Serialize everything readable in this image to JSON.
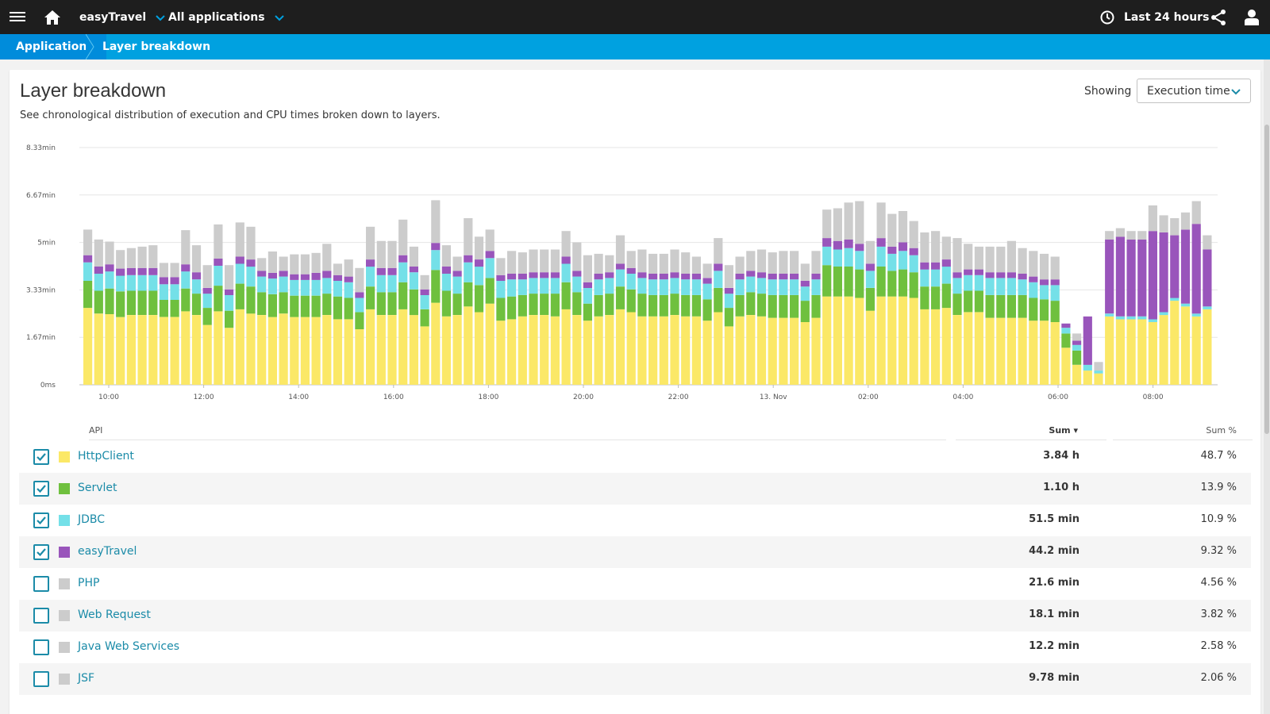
{
  "topbar": {
    "app_name": "easyTravel",
    "all_apps": "All applications",
    "timeframe": "Last 24 hours"
  },
  "breadcrumb": {
    "items": [
      "Applications",
      "Layer breakdown"
    ]
  },
  "page": {
    "title": "Layer breakdown",
    "description": "See chronological distribution of execution and CPU times broken down to layers.",
    "showing_label": "Showing",
    "showing_value": "Execution time"
  },
  "colors": {
    "HttpClient": "#fbe867",
    "Servlet": "#6fc03e",
    "JDBC": "#74e0e8",
    "easyTravel": "#9955bb",
    "Other": "#cccccc",
    "topbar": "#1e1e1e",
    "breadcrumb": "#00a1e0",
    "link": "#1b8ba8"
  },
  "chart_data": {
    "type": "bar",
    "stacked": true,
    "y_tick_labels": [
      "0ms",
      "1.67min",
      "3.33min",
      "5min",
      "6.67min",
      "8.33min"
    ],
    "ylim": [
      0,
      8.33
    ],
    "x_tick_labels": [
      "10:00",
      "12:00",
      "14:00",
      "16:00",
      "18:00",
      "20:00",
      "22:00",
      "13. Nov",
      "02:00",
      "04:00",
      "06:00",
      "08:00"
    ],
    "grid": true,
    "legend": "none",
    "series": [
      {
        "name": "HttpClient",
        "color": "#fbe867",
        "values": [
          2.7,
          2.5,
          2.48,
          2.38,
          2.45,
          2.45,
          2.45,
          2.38,
          2.38,
          2.58,
          2.45,
          2.1,
          2.58,
          2.0,
          2.65,
          2.5,
          2.45,
          2.38,
          2.5,
          2.38,
          2.38,
          2.38,
          2.45,
          2.3,
          2.3,
          1.95,
          2.65,
          2.45,
          2.45,
          2.65,
          2.45,
          2.05,
          2.88,
          2.4,
          2.45,
          2.75,
          2.55,
          2.85,
          2.25,
          2.3,
          2.4,
          2.45,
          2.45,
          2.4,
          2.65,
          2.45,
          2.25,
          2.4,
          2.45,
          2.65,
          2.55,
          2.4,
          2.4,
          2.4,
          2.45,
          2.4,
          2.4,
          2.25,
          2.55,
          2.05,
          2.4,
          2.45,
          2.4,
          2.35,
          2.35,
          2.35,
          2.2,
          2.35,
          3.1,
          3.1,
          3.1,
          3.05,
          2.6,
          3.1,
          3.1,
          3.1,
          3.05,
          2.65,
          2.65,
          2.7,
          2.45,
          2.55,
          2.55,
          2.35,
          2.35,
          2.35,
          2.35,
          2.25,
          2.25,
          2.2,
          1.3,
          0.7,
          0.5,
          0.4,
          2.4,
          2.3,
          2.3,
          2.3,
          2.2,
          2.45,
          2.95,
          2.75,
          2.4,
          2.65
        ]
      },
      {
        "name": "Servlet",
        "color": "#6fc03e",
        "values": [
          0.95,
          0.8,
          0.9,
          0.9,
          0.85,
          0.85,
          0.85,
          0.6,
          0.6,
          0.8,
          0.75,
          0.6,
          0.9,
          0.6,
          0.9,
          0.95,
          0.8,
          0.8,
          0.75,
          0.75,
          0.75,
          0.75,
          0.75,
          0.8,
          0.75,
          0.6,
          0.8,
          0.8,
          0.8,
          0.95,
          0.9,
          0.6,
          1.15,
          0.9,
          0.75,
          0.85,
          0.95,
          0.9,
          0.8,
          0.8,
          0.75,
          0.75,
          0.75,
          0.8,
          0.95,
          0.8,
          0.6,
          0.75,
          0.75,
          0.8,
          0.8,
          0.8,
          0.75,
          0.75,
          0.75,
          0.75,
          0.75,
          0.75,
          0.85,
          0.65,
          0.75,
          0.8,
          0.8,
          0.8,
          0.8,
          0.8,
          0.75,
          0.8,
          1.1,
          1.05,
          1.05,
          1.0,
          0.8,
          1.05,
          0.9,
          0.95,
          0.9,
          0.8,
          0.8,
          0.85,
          0.75,
          0.75,
          0.75,
          0.8,
          0.8,
          0.8,
          0.8,
          0.8,
          0.75,
          0.75,
          0.5,
          0.5,
          0.0,
          0.0,
          0.0,
          0.0,
          0.0,
          0.0,
          0.0,
          0.0,
          0.0,
          0.0,
          0.0,
          0.0
        ]
      },
      {
        "name": "JDBC",
        "color": "#74e0e8",
        "values": [
          0.65,
          0.6,
          0.6,
          0.55,
          0.55,
          0.55,
          0.55,
          0.55,
          0.55,
          0.6,
          0.5,
          0.5,
          0.7,
          0.55,
          0.7,
          0.7,
          0.55,
          0.55,
          0.55,
          0.55,
          0.55,
          0.55,
          0.55,
          0.55,
          0.55,
          0.5,
          0.7,
          0.6,
          0.6,
          0.7,
          0.6,
          0.5,
          0.7,
          0.6,
          0.6,
          0.7,
          0.65,
          0.7,
          0.6,
          0.6,
          0.55,
          0.55,
          0.55,
          0.55,
          0.65,
          0.55,
          0.55,
          0.55,
          0.55,
          0.6,
          0.55,
          0.55,
          0.55,
          0.55,
          0.55,
          0.55,
          0.55,
          0.55,
          0.6,
          0.5,
          0.55,
          0.55,
          0.55,
          0.55,
          0.55,
          0.55,
          0.5,
          0.55,
          0.65,
          0.6,
          0.65,
          0.65,
          0.6,
          0.7,
          0.6,
          0.65,
          0.6,
          0.6,
          0.6,
          0.6,
          0.55,
          0.55,
          0.55,
          0.6,
          0.6,
          0.6,
          0.55,
          0.55,
          0.5,
          0.55,
          0.2,
          0.2,
          0.2,
          0.1,
          0.1,
          0.1,
          0.1,
          0.1,
          0.1,
          0.1,
          0.1,
          0.1,
          0.1,
          0.1
        ]
      },
      {
        "name": "easyTravel",
        "color": "#9955bb",
        "values": [
          0.25,
          0.25,
          0.25,
          0.25,
          0.25,
          0.25,
          0.25,
          0.25,
          0.25,
          0.25,
          0.25,
          0.2,
          0.25,
          0.2,
          0.25,
          0.25,
          0.2,
          0.2,
          0.2,
          0.2,
          0.2,
          0.25,
          0.25,
          0.2,
          0.2,
          0.2,
          0.25,
          0.25,
          0.25,
          0.25,
          0.2,
          0.2,
          0.25,
          0.25,
          0.2,
          0.25,
          0.25,
          0.25,
          0.2,
          0.2,
          0.2,
          0.2,
          0.2,
          0.2,
          0.25,
          0.2,
          0.2,
          0.2,
          0.2,
          0.2,
          0.2,
          0.2,
          0.2,
          0.2,
          0.2,
          0.2,
          0.2,
          0.2,
          0.25,
          0.2,
          0.2,
          0.2,
          0.2,
          0.2,
          0.2,
          0.2,
          0.2,
          0.2,
          0.3,
          0.3,
          0.3,
          0.25,
          0.25,
          0.3,
          0.25,
          0.3,
          0.25,
          0.25,
          0.25,
          0.25,
          0.2,
          0.2,
          0.2,
          0.2,
          0.2,
          0.2,
          0.2,
          0.2,
          0.2,
          0.2,
          0.15,
          0.15,
          1.7,
          0.0,
          2.6,
          2.8,
          2.7,
          2.7,
          3.1,
          2.8,
          2.2,
          2.6,
          3.15,
          2.0
        ]
      },
      {
        "name": "Other",
        "color": "#cccccc",
        "values": [
          0.9,
          0.95,
          0.8,
          0.65,
          0.7,
          0.75,
          0.8,
          0.5,
          0.5,
          1.2,
          0.95,
          0.8,
          1.2,
          0.85,
          1.2,
          1.15,
          0.45,
          0.75,
          0.5,
          0.7,
          0.7,
          0.7,
          0.95,
          0.4,
          0.6,
          0.85,
          1.15,
          0.95,
          0.95,
          1.25,
          0.7,
          0.5,
          1.5,
          0.75,
          0.5,
          1.3,
          0.8,
          0.75,
          0.6,
          0.8,
          0.75,
          0.8,
          0.8,
          0.8,
          0.9,
          1.0,
          0.95,
          0.7,
          0.6,
          1.0,
          0.6,
          0.8,
          0.7,
          0.7,
          0.8,
          0.75,
          0.6,
          0.5,
          0.9,
          0.8,
          0.6,
          0.7,
          0.8,
          0.75,
          0.8,
          0.8,
          0.6,
          0.8,
          1.0,
          1.15,
          1.3,
          1.5,
          0.8,
          1.25,
          1.15,
          1.1,
          0.95,
          1.05,
          1.1,
          0.8,
          1.2,
          0.9,
          0.8,
          0.9,
          0.9,
          1.1,
          0.9,
          0.9,
          0.9,
          0.8,
          0.0,
          0.25,
          0.0,
          0.3,
          0.3,
          0.3,
          0.3,
          0.3,
          0.9,
          0.6,
          0.6,
          0.6,
          0.8,
          0.5
        ]
      }
    ]
  },
  "table": {
    "headers": {
      "api": "API",
      "sum": "Sum ▾",
      "pct": "Sum %"
    },
    "rows": [
      {
        "name": "HttpClient",
        "sum": "3.84 h",
        "pct": "48.7 %",
        "checked": true,
        "color": "#fbe867"
      },
      {
        "name": "Servlet",
        "sum": "1.10 h",
        "pct": "13.9 %",
        "checked": true,
        "color": "#6fc03e"
      },
      {
        "name": "JDBC",
        "sum": "51.5 min",
        "pct": "10.9 %",
        "checked": true,
        "color": "#74e0e8"
      },
      {
        "name": "easyTravel",
        "sum": "44.2 min",
        "pct": "9.32 %",
        "checked": true,
        "color": "#9955bb"
      },
      {
        "name": "PHP",
        "sum": "21.6 min",
        "pct": "4.56 %",
        "checked": false,
        "color": "#cccccc"
      },
      {
        "name": "Web Request",
        "sum": "18.1 min",
        "pct": "3.82 %",
        "checked": false,
        "color": "#cccccc"
      },
      {
        "name": "Java Web Services",
        "sum": "12.2 min",
        "pct": "2.58 %",
        "checked": false,
        "color": "#cccccc"
      },
      {
        "name": "JSF",
        "sum": "9.78 min",
        "pct": "2.06 %",
        "checked": false,
        "color": "#cccccc"
      }
    ]
  }
}
